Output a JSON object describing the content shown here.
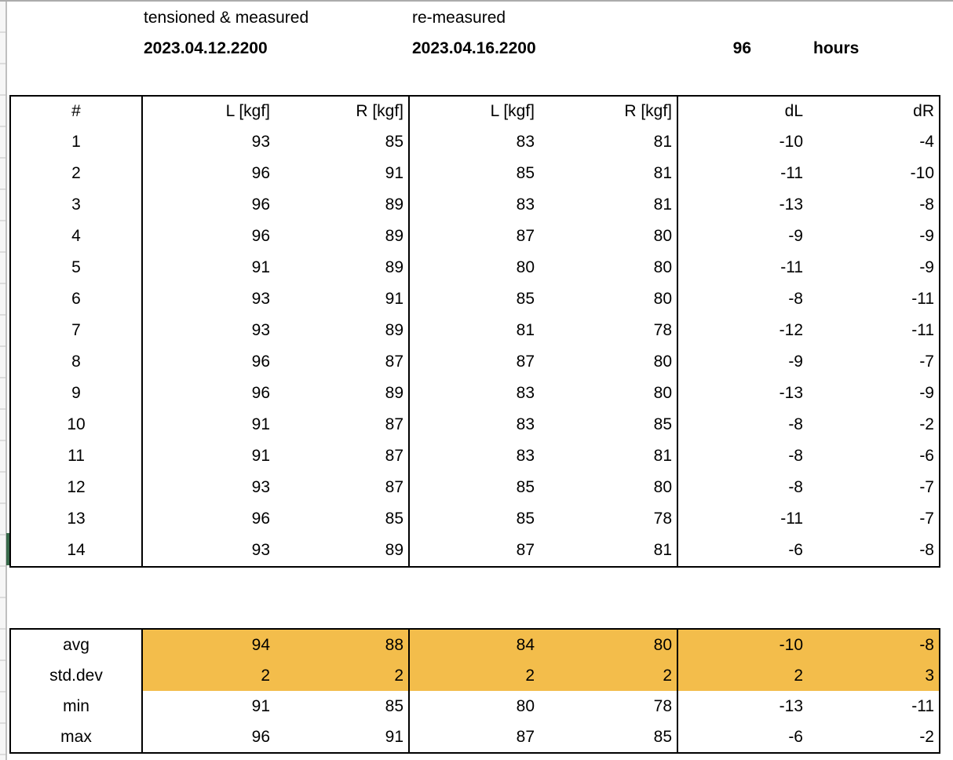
{
  "header": {
    "session1_label": "tensioned & measured",
    "session1_date": "2023.04.12.2200",
    "session2_label": "re-measured",
    "session2_date": "2023.04.16.2200",
    "elapsed_value": "96",
    "elapsed_unit": "hours"
  },
  "chart_data": {
    "type": "table",
    "columns": [
      "#",
      "L [kgf]",
      "R [kgf]",
      "L [kgf]",
      "R [kgf]",
      "dL",
      "dR"
    ],
    "rows": [
      [
        "1",
        "93",
        "85",
        "83",
        "81",
        "-10",
        "-4"
      ],
      [
        "2",
        "96",
        "91",
        "85",
        "81",
        "-11",
        "-10"
      ],
      [
        "3",
        "96",
        "89",
        "83",
        "81",
        "-13",
        "-8"
      ],
      [
        "4",
        "96",
        "89",
        "87",
        "80",
        "-9",
        "-9"
      ],
      [
        "5",
        "91",
        "89",
        "80",
        "80",
        "-11",
        "-9"
      ],
      [
        "6",
        "93",
        "91",
        "85",
        "80",
        "-8",
        "-11"
      ],
      [
        "7",
        "93",
        "89",
        "81",
        "78",
        "-12",
        "-11"
      ],
      [
        "8",
        "96",
        "87",
        "87",
        "80",
        "-9",
        "-7"
      ],
      [
        "9",
        "96",
        "89",
        "83",
        "80",
        "-13",
        "-9"
      ],
      [
        "10",
        "91",
        "87",
        "83",
        "85",
        "-8",
        "-2"
      ],
      [
        "11",
        "91",
        "87",
        "83",
        "81",
        "-8",
        "-6"
      ],
      [
        "12",
        "93",
        "87",
        "85",
        "80",
        "-8",
        "-7"
      ],
      [
        "13",
        "96",
        "85",
        "85",
        "78",
        "-11",
        "-7"
      ],
      [
        "14",
        "93",
        "89",
        "87",
        "81",
        "-6",
        "-8"
      ]
    ],
    "summary_rows": [
      {
        "label": "avg",
        "values": [
          "94",
          "88",
          "84",
          "80",
          "-10",
          "-8"
        ],
        "highlight": true
      },
      {
        "label": "std.dev",
        "values": [
          "2",
          "2",
          "2",
          "2",
          "2",
          "3"
        ],
        "highlight": true
      },
      {
        "label": "min",
        "values": [
          "91",
          "85",
          "80",
          "78",
          "-13",
          "-11"
        ],
        "highlight": false
      },
      {
        "label": "max",
        "values": [
          "96",
          "91",
          "87",
          "85",
          "-6",
          "-2"
        ],
        "highlight": false
      }
    ]
  },
  "colors": {
    "summary_highlight": "#F3BD4B",
    "selection_green": "#38694A"
  }
}
